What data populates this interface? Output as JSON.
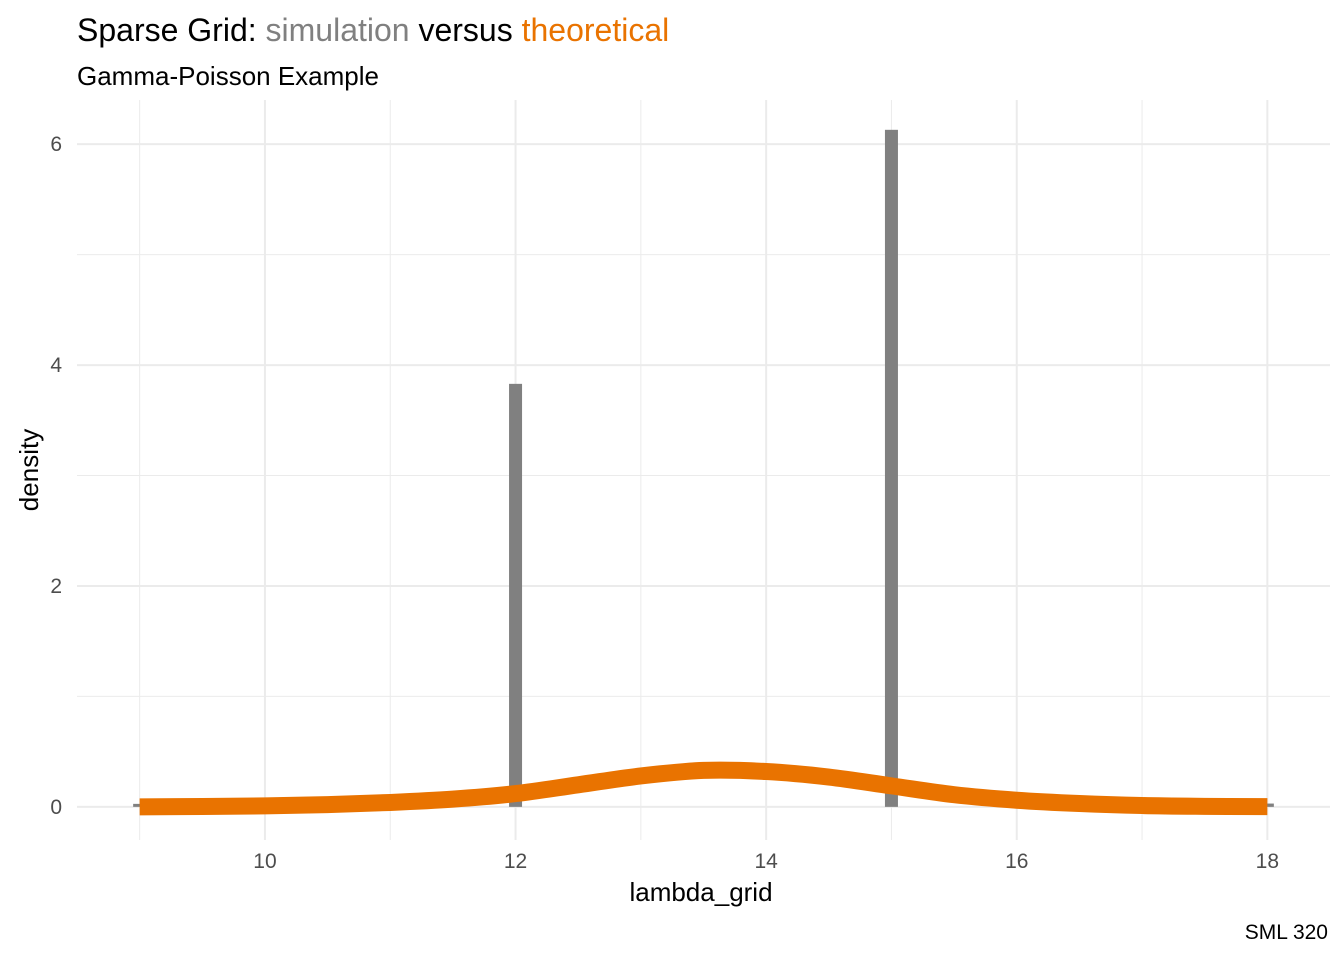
{
  "header": {
    "title_part1": "Sparse Grid: ",
    "title_part2": "simulation",
    "title_part3": " versus ",
    "title_part4": "theoretical",
    "subtitle": "Gamma-Poisson Example",
    "caption": "SML 320"
  },
  "colors": {
    "simulation": "#808080",
    "theoretical": "#E97300",
    "grid": "#EBEBEB",
    "text": "#000000",
    "tick_text": "#4D4D4D"
  },
  "chart_data": {
    "type": "bar",
    "xlabel": "lambda_grid",
    "ylabel": "density",
    "xlim": [
      8.5,
      18.5
    ],
    "ylim": [
      -0.3,
      6.4
    ],
    "x_ticks": [
      10,
      12,
      14,
      16,
      18
    ],
    "y_ticks": [
      0,
      2,
      4,
      6
    ],
    "grid": true,
    "legend": "none",
    "series": [
      {
        "name": "simulation",
        "type": "bar",
        "x": [
          9,
          12,
          15,
          18
        ],
        "values": [
          0.01,
          3.83,
          6.13,
          0.03
        ]
      },
      {
        "name": "theoretical",
        "type": "line",
        "x": [
          9,
          9.5,
          10,
          10.5,
          11,
          11.5,
          12,
          12.5,
          13,
          13.5,
          14,
          14.5,
          15,
          15.5,
          16,
          16.5,
          17,
          17.5,
          18
        ],
        "values": [
          0.0,
          0.003,
          0.009,
          0.02,
          0.04,
          0.07,
          0.12,
          0.2,
          0.28,
          0.33,
          0.32,
          0.27,
          0.19,
          0.11,
          0.06,
          0.03,
          0.012,
          0.005,
          0.002
        ]
      }
    ]
  }
}
